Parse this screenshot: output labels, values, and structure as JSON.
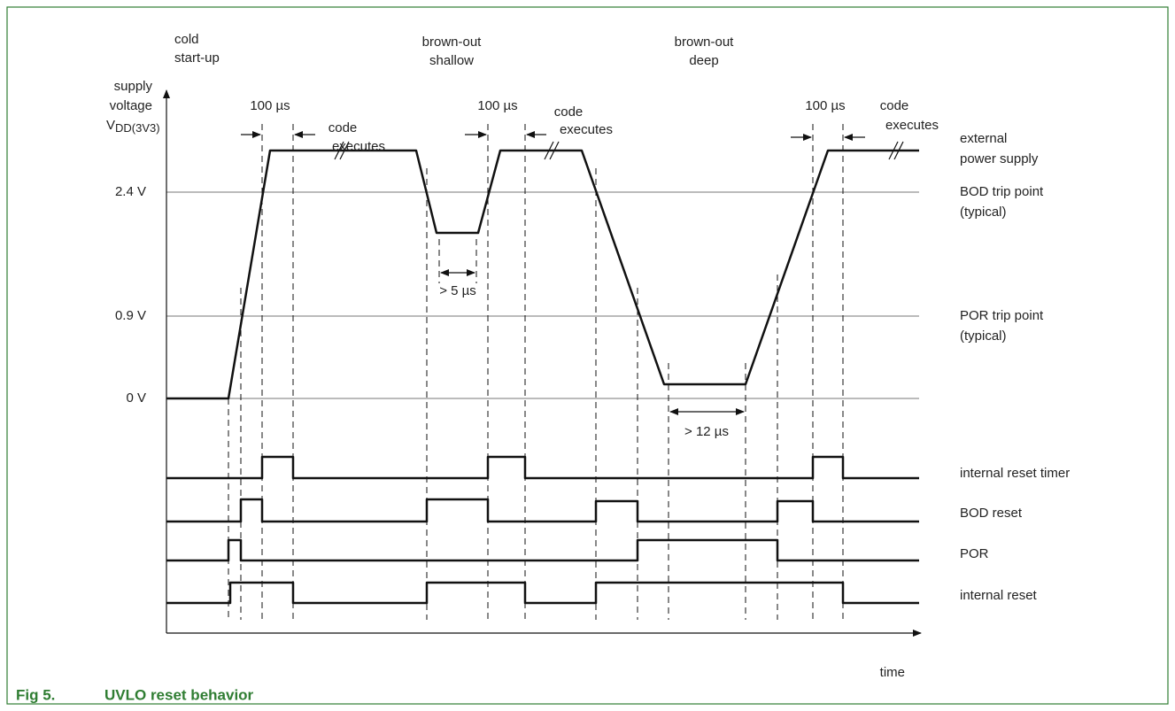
{
  "events": [
    {
      "lines": [
        "cold",
        "start-up"
      ]
    },
    {
      "lines": [
        "brown-out",
        "shallow"
      ]
    },
    {
      "lines": [
        "brown-out",
        "deep"
      ]
    }
  ],
  "y_axis": {
    "lines": [
      "supply",
      "voltage"
    ],
    "symbol": {
      "main": "V",
      "sub": "DD(3V3)"
    }
  },
  "levels": [
    "2.4 V",
    "0.9 V",
    "0 V"
  ],
  "delays": [
    "100 µs",
    "100 µs",
    "100 µs"
  ],
  "code": [
    {
      "lines": [
        "code",
        "executes"
      ]
    },
    {
      "lines": [
        "code",
        "executes"
      ]
    },
    {
      "lines": [
        "code",
        "executes"
      ]
    }
  ],
  "durations": [
    "> 5 µs",
    "> 12 µs"
  ],
  "signals": [
    {
      "lines": [
        "external",
        "power supply"
      ]
    },
    {
      "lines": [
        "BOD trip point",
        "(typical)"
      ]
    },
    {
      "lines": [
        "POR trip point",
        "(typical)"
      ]
    },
    {
      "lines": [
        "internal reset timer"
      ]
    },
    {
      "lines": [
        "BOD reset"
      ]
    },
    {
      "lines": [
        "POR"
      ]
    },
    {
      "lines": [
        "internal reset"
      ]
    }
  ],
  "x_axis": "time",
  "caption": {
    "number": "Fig 5.",
    "title": "UVLO reset behavior"
  }
}
